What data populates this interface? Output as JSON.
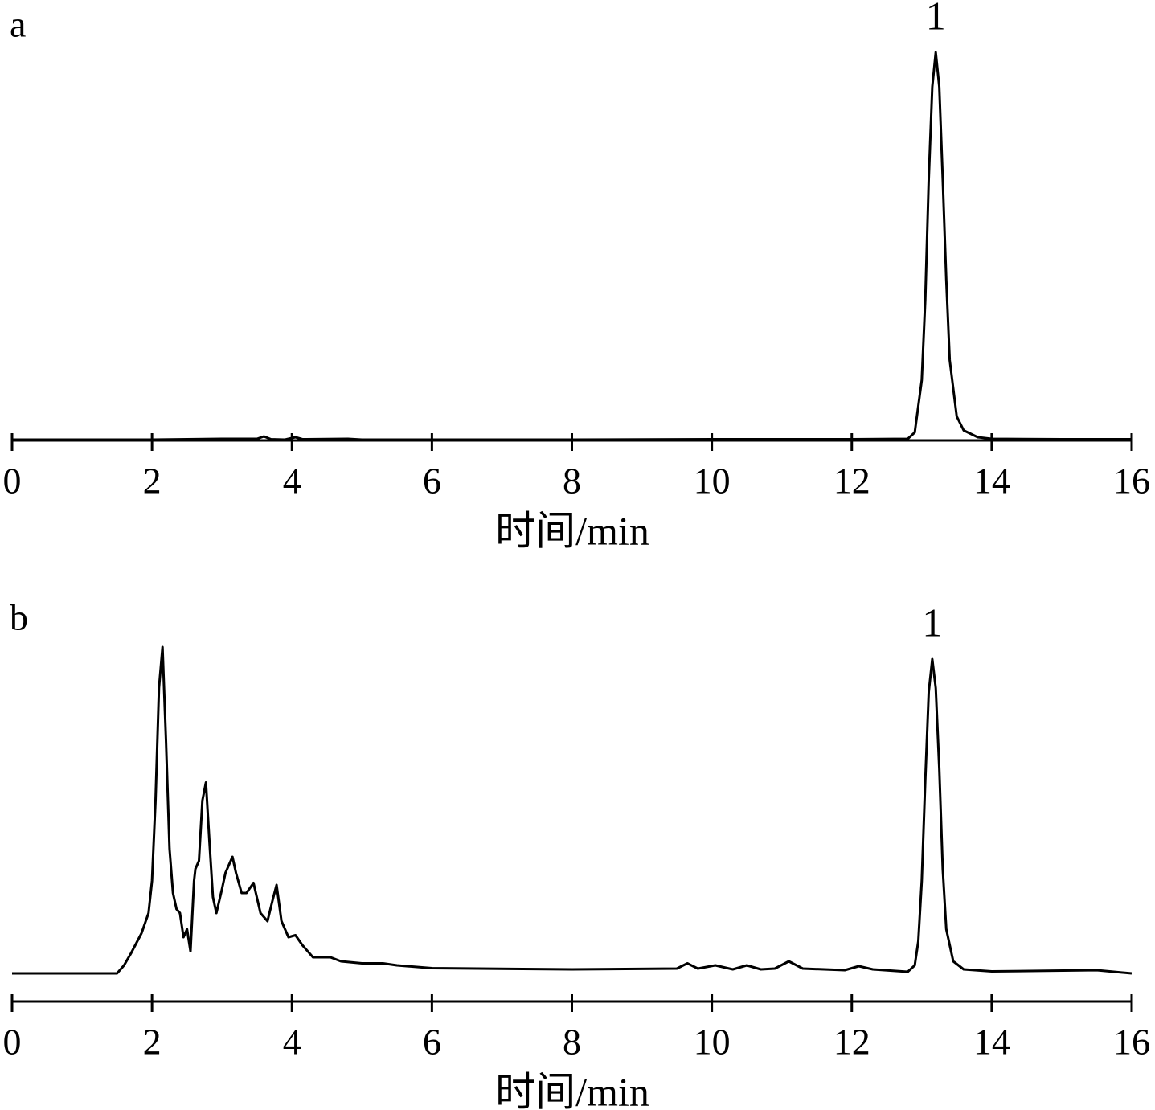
{
  "chart_data": [
    {
      "type": "line",
      "panel_label": "a",
      "xlabel": "时间/min",
      "annotation": "1",
      "x": [
        0,
        1,
        2,
        3,
        3.5,
        3.6,
        3.7,
        3.9,
        4.05,
        4.15,
        4.8,
        5,
        8,
        10,
        12,
        12.8,
        12.9,
        13.0,
        13.05,
        13.1,
        13.15,
        13.2,
        13.25,
        13.3,
        13.35,
        13.4,
        13.5,
        13.6,
        13.8,
        14,
        15,
        16
      ],
      "series": [
        {
          "color": "#000000",
          "values": [
            0.2,
            0.2,
            0.2,
            0.4,
            0.4,
            1.0,
            0.3,
            0.2,
            0.8,
            0.3,
            0.4,
            0.2,
            0.2,
            0.3,
            0.3,
            0.4,
            2,
            15,
            35,
            65,
            88,
            96.6,
            88,
            65,
            40,
            20,
            6,
            2.5,
            0.8,
            0.4,
            0.3,
            0.3
          ]
        }
      ],
      "xlim": [
        0,
        16
      ],
      "ylim": [
        0,
        100
      ],
      "xticks": [
        0,
        2,
        4,
        6,
        8,
        10,
        12,
        14,
        16
      ]
    },
    {
      "type": "line",
      "panel_label": "b",
      "xlabel": "时间/min",
      "annotation": "1",
      "x": [
        0,
        1.5,
        1.6,
        1.7,
        1.85,
        1.95,
        2.0,
        2.05,
        2.1,
        2.15,
        2.2,
        2.25,
        2.3,
        2.35,
        2.4,
        2.45,
        2.5,
        2.55,
        2.6,
        2.62,
        2.67,
        2.72,
        2.77,
        2.82,
        2.87,
        2.92,
        3.0,
        3.05,
        3.15,
        3.2,
        3.28,
        3.35,
        3.45,
        3.55,
        3.65,
        3.72,
        3.78,
        3.85,
        3.95,
        4.05,
        4.15,
        4.3,
        4.55,
        4.7,
        5,
        5.3,
        5.5,
        6,
        8,
        9.5,
        9.65,
        9.8,
        10.05,
        10.3,
        10.5,
        10.7,
        10.9,
        11.1,
        11.3,
        11.9,
        12.1,
        12.3,
        12.8,
        12.9,
        12.95,
        13.0,
        13.05,
        13.1,
        13.15,
        13.2,
        13.25,
        13.3,
        13.35,
        13.45,
        13.6,
        14,
        15.5,
        16
      ],
      "series": [
        {
          "color": "#000000",
          "values": [
            7,
            7,
            9,
            12,
            17,
            22,
            30,
            50,
            78,
            88.2,
            65,
            38,
            27,
            23,
            22,
            16,
            18,
            12.5,
            30,
            33,
            35,
            50,
            54.5,
            40,
            26,
            22,
            28,
            32,
            36,
            32,
            27,
            27,
            29.5,
            22,
            20,
            25,
            29,
            20,
            16,
            16.5,
            14,
            11,
            11,
            10,
            9.5,
            9.5,
            9,
            8.3,
            8,
            8.2,
            9.5,
            8.2,
            9,
            8,
            9,
            8,
            8.2,
            10,
            8.2,
            7.8,
            8.8,
            8,
            7.4,
            9,
            15,
            30,
            55,
            77,
            85.2,
            78,
            58,
            33,
            18,
            10,
            8,
            7.5,
            7.8,
            7
          ]
        }
      ],
      "xlim": [
        0,
        16
      ],
      "ylim": [
        0,
        100
      ],
      "xticks": [
        0,
        2,
        4,
        6,
        8,
        10,
        12,
        14,
        16
      ]
    }
  ]
}
